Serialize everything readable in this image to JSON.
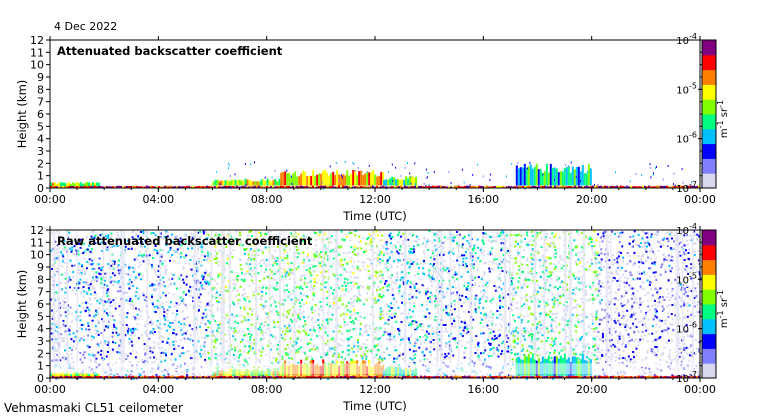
{
  "date_label": "4 Dec 2022",
  "footer_label": "Vehmasmaki CL51 ceilometer",
  "colors": {
    "background": "#ffffff",
    "axis": "#000000",
    "colormap": [
      "#d8d8f0",
      "#7f7fff",
      "#0000ff",
      "#00c0ff",
      "#00ff80",
      "#80ff00",
      "#ffff00",
      "#ff8000",
      "#ff0000",
      "#800080"
    ]
  },
  "chart_data": [
    {
      "type": "heatmap",
      "title": "Attenuated backscatter coefficient",
      "xlabel": "Time (UTC)",
      "ylabel": "Height (km)",
      "xticks": [
        "00:00",
        "04:00",
        "08:00",
        "12:00",
        "16:00",
        "20:00",
        "00:00"
      ],
      "yticks": [
        "0",
        "1",
        "2",
        "3",
        "4",
        "5",
        "6",
        "7",
        "8",
        "9",
        "10",
        "11",
        "12"
      ],
      "xlim_hours": [
        0,
        24
      ],
      "ylim": [
        0,
        12
      ],
      "colorbar": {
        "ticks": [
          "10",
          "10",
          "10",
          "10"
        ],
        "exponents": [
          "-4",
          "-5",
          "-6",
          "-7"
        ],
        "label": "m",
        "label_exp1": "-1",
        "label_mid": " sr",
        "label_exp2": "-1",
        "scale": "log",
        "range": [
          1e-07,
          0.0001
        ]
      },
      "features": [
        {
          "t0": 0,
          "t1": 1.8,
          "h0": 0.1,
          "h1": 0.5,
          "level": 0.55,
          "note": "low layer"
        },
        {
          "t0": 0,
          "t1": 24,
          "h0": 0.0,
          "h1": 0.2,
          "level": 0.85,
          "note": "surface layer"
        },
        {
          "t0": 6.0,
          "t1": 8.5,
          "h0": 0.2,
          "h1": 0.8,
          "level": 0.6
        },
        {
          "t0": 8.5,
          "t1": 12.3,
          "h0": 0.2,
          "h1": 1.5,
          "level": 0.7
        },
        {
          "t0": 12.3,
          "t1": 13.5,
          "h0": 0.2,
          "h1": 1.0,
          "level": 0.5
        },
        {
          "t0": 17.2,
          "t1": 20.0,
          "h0": 0.2,
          "h1": 2.0,
          "level": 0.4
        }
      ]
    },
    {
      "type": "heatmap",
      "title": "Raw attenuated backscatter coefficient",
      "xlabel": "Time (UTC)",
      "ylabel": "Height (km)",
      "xticks": [
        "00:00",
        "04:00",
        "08:00",
        "12:00",
        "16:00",
        "20:00",
        "00:00"
      ],
      "yticks": [
        "0",
        "1",
        "2",
        "3",
        "4",
        "5",
        "6",
        "7",
        "8",
        "9",
        "10",
        "11",
        "12"
      ],
      "xlim_hours": [
        0,
        24
      ],
      "ylim": [
        0,
        12
      ],
      "colorbar": {
        "ticks": [
          "10",
          "10",
          "10",
          "10"
        ],
        "exponents": [
          "-4",
          "-5",
          "-6",
          "-7"
        ],
        "label": "m",
        "label_exp1": "-1",
        "label_mid": " sr",
        "label_exp2": "-1",
        "scale": "log",
        "range": [
          1e-07,
          0.0001
        ]
      },
      "noise_regions": [
        {
          "t0": 0,
          "t1": 5.8,
          "level": 0.25
        },
        {
          "t0": 5.8,
          "t1": 12.3,
          "level": 0.45
        },
        {
          "t0": 12.3,
          "t1": 17.0,
          "level": 0.3
        },
        {
          "t0": 17.0,
          "t1": 20.2,
          "level": 0.42
        },
        {
          "t0": 20.2,
          "t1": 24,
          "level": 0.15
        }
      ]
    }
  ]
}
